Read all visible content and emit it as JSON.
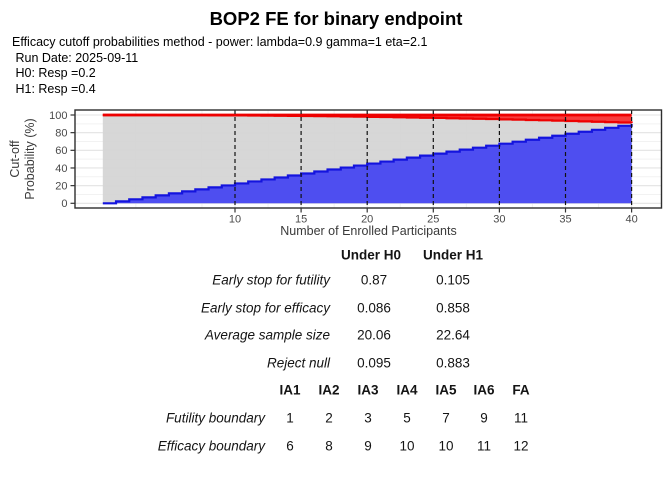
{
  "title": "BOP2 FE for binary endpoint",
  "info_lines": {
    "method": "Efficacy cutoff probabilities method - power: lambda=0.9 gamma=1 eta=2.1",
    "run_date": " Run Date: 2025-09-11",
    "h0": " H0: Resp =0.2",
    "h1": " H1: Resp =0.4"
  },
  "chart_data": {
    "type": "area",
    "title": "",
    "xlabel": "Number of Enrolled Participants",
    "ylabel_line1": "Cut-off",
    "ylabel_line2": "Probability (%)",
    "xlim": [
      0,
      40
    ],
    "ylim": [
      0,
      100
    ],
    "x_ticks": [
      10,
      15,
      20,
      25,
      30,
      35,
      40
    ],
    "y_ticks": [
      0,
      20,
      40,
      60,
      80,
      100
    ],
    "interim_analysis_lines_x": [
      10,
      15,
      20,
      25,
      30,
      35,
      40
    ],
    "n": "0..40 step function, values below per n",
    "series": [
      {
        "name": "futility_cutoff_pct",
        "region": "blue lower area",
        "values": [
          0,
          2.25,
          4.5,
          6.75,
          9,
          11.25,
          13.5,
          15.75,
          18,
          20.25,
          22.5,
          24.75,
          27,
          29.25,
          31.5,
          33.75,
          36,
          38.25,
          40.5,
          42.75,
          45,
          47.25,
          49.5,
          51.75,
          54,
          56.25,
          58.5,
          60.75,
          63,
          65.25,
          67.5,
          69.75,
          72,
          74.25,
          76.5,
          78.75,
          81,
          83.25,
          85.5,
          87.75,
          90
        ]
      },
      {
        "name": "efficacy_cutoff_pct",
        "region": "red upper band lower edge",
        "values": [
          100,
          100,
          99.98,
          99.96,
          99.93,
          99.89,
          99.83,
          99.77,
          99.69,
          99.61,
          99.51,
          99.4,
          99.28,
          99.15,
          99.01,
          98.85,
          98.69,
          98.51,
          98.32,
          98.12,
          97.9,
          97.67,
          97.44,
          97.19,
          96.92,
          96.65,
          96.36,
          96.06,
          95.74,
          95.42,
          95.08,
          94.73,
          94.37,
          93.99,
          93.6,
          93.2,
          92.79,
          92.36,
          91.92,
          91.47,
          91
        ]
      }
    ],
    "colors": {
      "blue_fill": "#4444F2",
      "blue_line": "#1414DE",
      "red_fill": "#FA3434",
      "red_line": "#EE0000",
      "gray_fill": "#D4D4D4",
      "grid_major": "#E3E3E3",
      "grid_minor": "#F2F2F2",
      "dashed_line": "#111111",
      "panel_border": "#2E2E2E",
      "tick_label": "#4A4A4A"
    },
    "grid": true,
    "legend": false
  },
  "tables": {
    "performance": {
      "col_headers": [
        "Under H0",
        "Under H1"
      ],
      "rows": [
        {
          "label": "Early stop for futility",
          "h0": "0.87",
          "h1": "0.105"
        },
        {
          "label": "Early stop for efficacy",
          "h0": "0.086",
          "h1": "0.858"
        },
        {
          "label": "Average sample size",
          "h0": "20.06",
          "h1": "22.64"
        },
        {
          "label": "Reject null",
          "h0": "0.095",
          "h1": "0.883"
        }
      ]
    },
    "boundary": {
      "col_headers": [
        "IA1",
        "IA2",
        "IA3",
        "IA4",
        "IA5",
        "IA6",
        "FA"
      ],
      "rows": [
        {
          "label": "Futility boundary",
          "values": [
            "1",
            "2",
            "3",
            "5",
            "7",
            "9",
            "11"
          ]
        },
        {
          "label": "Efficacy boundary",
          "values": [
            "6",
            "8",
            "9",
            "10",
            "10",
            "11",
            "12"
          ]
        }
      ]
    }
  }
}
